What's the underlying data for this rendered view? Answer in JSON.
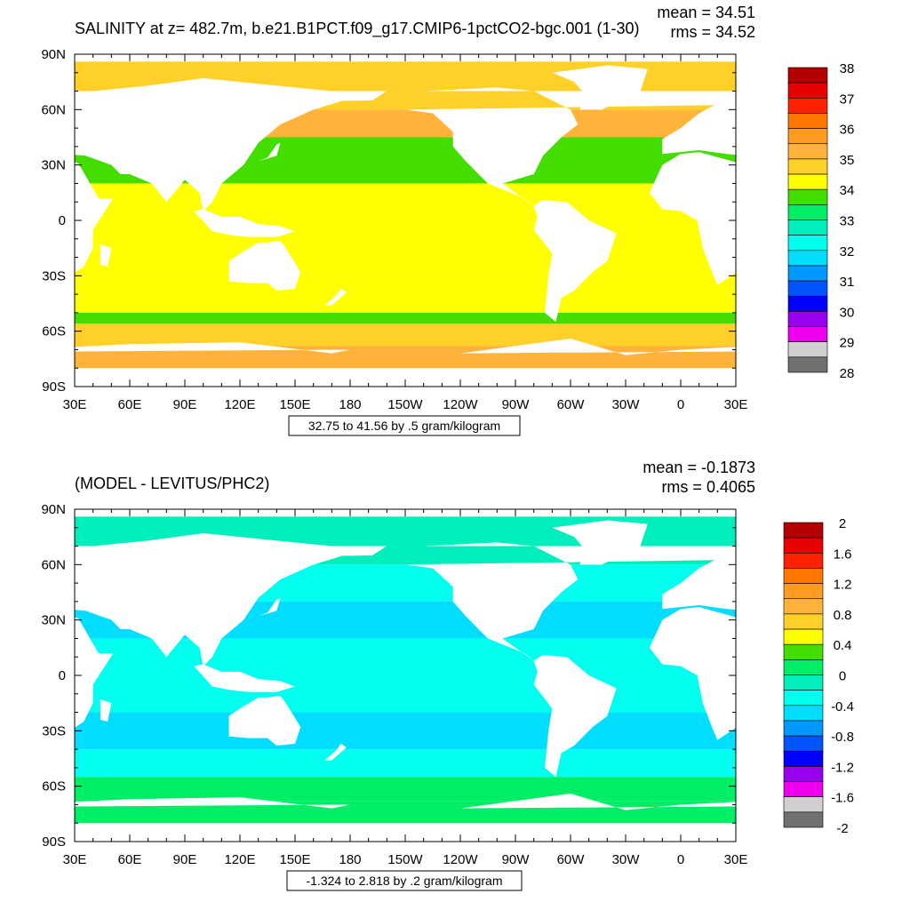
{
  "panels": [
    {
      "title": "SALINITY at z= 482.7m, b.e21.B1PCT.f09_g17.CMIP6-1pctCO2-bgc.001 (1-30)",
      "mean_text": "mean = 34.51",
      "rms_text": "rms = 34.52",
      "contour_info": "32.75 to 41.56 by .5 gram/kilogram",
      "colorbar_labels": [
        "38",
        "37",
        "36",
        "35",
        "34",
        "33",
        "32",
        "31",
        "30",
        "29",
        "28"
      ]
    },
    {
      "title": "(MODEL - LEVITUS/PHC2)",
      "mean_text": "mean = -0.1873",
      "rms_text": "rms = 0.4065",
      "contour_info": "-1.324 to 2.818 by .2 gram/kilogram",
      "colorbar_labels": [
        "2",
        "1.6",
        "1.2",
        "0.8",
        "0.4",
        "0",
        "-0.4",
        "-0.8",
        "-1.2",
        "-1.6",
        "-2"
      ]
    }
  ],
  "chart_data": [
    {
      "type": "heatmap",
      "title": "SALINITY at z= 482.7m, b.e21.B1PCT.f09_g17.CMIP6-1pctCO2-bgc.001 (1-30)",
      "xticks": [
        "30E",
        "60E",
        "90E",
        "120E",
        "150E",
        "180",
        "150W",
        "120W",
        "90W",
        "60W",
        "30W",
        "0",
        "30E"
      ],
      "yticks": [
        "90N",
        "60N",
        "30N",
        "0",
        "30S",
        "60S",
        "90S"
      ],
      "mean": 34.51,
      "rms": 34.52,
      "units": "gram/kilogram",
      "contour_range": [
        32.75,
        41.56
      ],
      "contour_interval": 0.5,
      "colorbar": {
        "levels": [
          38,
          37.5,
          37,
          36.5,
          36,
          35.5,
          35,
          34.5,
          34,
          33.5,
          33,
          32.5,
          32,
          31.5,
          31,
          30.5,
          30,
          29.5,
          29,
          28.5,
          28
        ],
        "colors": [
          "#b30000",
          "#e60000",
          "#ff2200",
          "#ff7700",
          "#ff9a22",
          "#ffb33a",
          "#ffd028",
          "#ffff00",
          "#44dd00",
          "#00ee66",
          "#00eebb",
          "#00ffee",
          "#00ddff",
          "#0099ff",
          "#0055ff",
          "#0000ff",
          "#9900ee",
          "#ee00ee",
          "#d0d0d0",
          "#707070"
        ]
      }
    },
    {
      "type": "heatmap",
      "title": "(MODEL - LEVITUS/PHC2)",
      "xticks": [
        "30E",
        "60E",
        "90E",
        "120E",
        "150E",
        "180",
        "150W",
        "120W",
        "90W",
        "60W",
        "30W",
        "0",
        "30E"
      ],
      "yticks": [
        "90N",
        "60N",
        "30N",
        "0",
        "30S",
        "60S",
        "90S"
      ],
      "mean": -0.1873,
      "rms": 0.4065,
      "units": "gram/kilogram",
      "contour_range": [
        -1.324,
        2.818
      ],
      "contour_interval": 0.2,
      "colorbar": {
        "levels": [
          2,
          1.8,
          1.6,
          1.4,
          1.2,
          1.0,
          0.8,
          0.6,
          0.4,
          0.2,
          0,
          -0.2,
          -0.4,
          -0.6,
          -0.8,
          -1.0,
          -1.2,
          -1.4,
          -1.6,
          -1.8,
          -2
        ],
        "colors": [
          "#b30000",
          "#e60000",
          "#ff2200",
          "#ff7700",
          "#ff9a22",
          "#ffb33a",
          "#ffd028",
          "#ffff00",
          "#44dd00",
          "#00ee66",
          "#00eebb",
          "#00ffee",
          "#00ddff",
          "#0099ff",
          "#0055ff",
          "#0000ff",
          "#9900ee",
          "#ee00ee",
          "#d0d0d0",
          "#707070"
        ]
      }
    }
  ]
}
